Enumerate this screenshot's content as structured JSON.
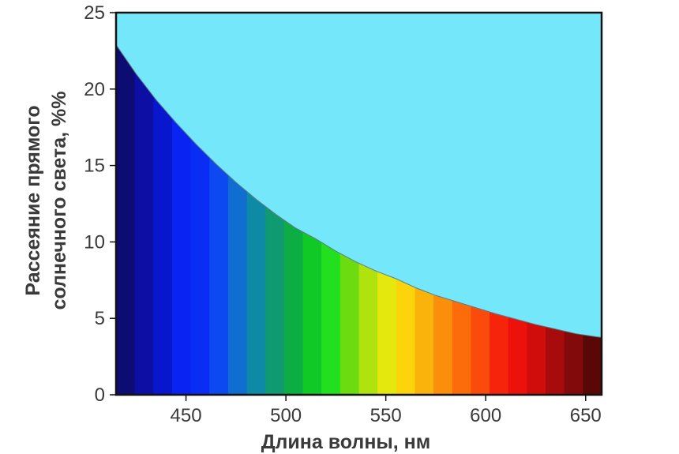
{
  "chart_data": {
    "type": "area",
    "title": "",
    "xlabel": "Длина волны, нм",
    "ylabel_lines": [
      "Рассеяние прямого",
      "солнечного света, %%"
    ],
    "xlim": [
      415,
      658
    ],
    "ylim": [
      0,
      25
    ],
    "xticks": [
      450,
      500,
      550,
      600,
      650
    ],
    "yticks": [
      0,
      5,
      10,
      15,
      20,
      25
    ],
    "xtick_labels": [
      "450",
      "500",
      "550",
      "600",
      "650"
    ],
    "ytick_labels": [
      "0",
      "5",
      "10",
      "15",
      "20",
      "25"
    ],
    "grid": false,
    "series": [
      {
        "x": [
          415,
          425,
          435,
          445,
          455,
          465,
          475,
          485,
          495,
          505,
          515,
          525,
          535,
          545,
          555,
          565,
          575,
          585,
          595,
          605,
          615,
          625,
          635,
          645,
          655,
          658
        ],
        "y": [
          22.9,
          21.0,
          19.3,
          17.8,
          16.4,
          15.1,
          13.9,
          12.8,
          11.8,
          10.9,
          10.2,
          9.4,
          8.7,
          8.1,
          7.6,
          7.0,
          6.5,
          6.1,
          5.7,
          5.3,
          4.95,
          4.6,
          4.3,
          4.0,
          3.8,
          3.75
        ]
      }
    ],
    "background_color": "#74e8fa",
    "spectrum_colors": [
      "#0c0c73",
      "#0d0ea4",
      "#0816ce",
      "#0823f2",
      "#0a2df6",
      "#0c49f0",
      "#0f6ed0",
      "#0e8aa7",
      "#109a6f",
      "#0cae44",
      "#10c826",
      "#23e01f",
      "#6cdc11",
      "#b0e20e",
      "#e5e80d",
      "#fbd40b",
      "#f9b30b",
      "#fb8e0b",
      "#fc6c0b",
      "#fb4b0c",
      "#f6240b",
      "#ec120b",
      "#d00d0b",
      "#a80b0b",
      "#820a0a",
      "#5a0807"
    ]
  }
}
